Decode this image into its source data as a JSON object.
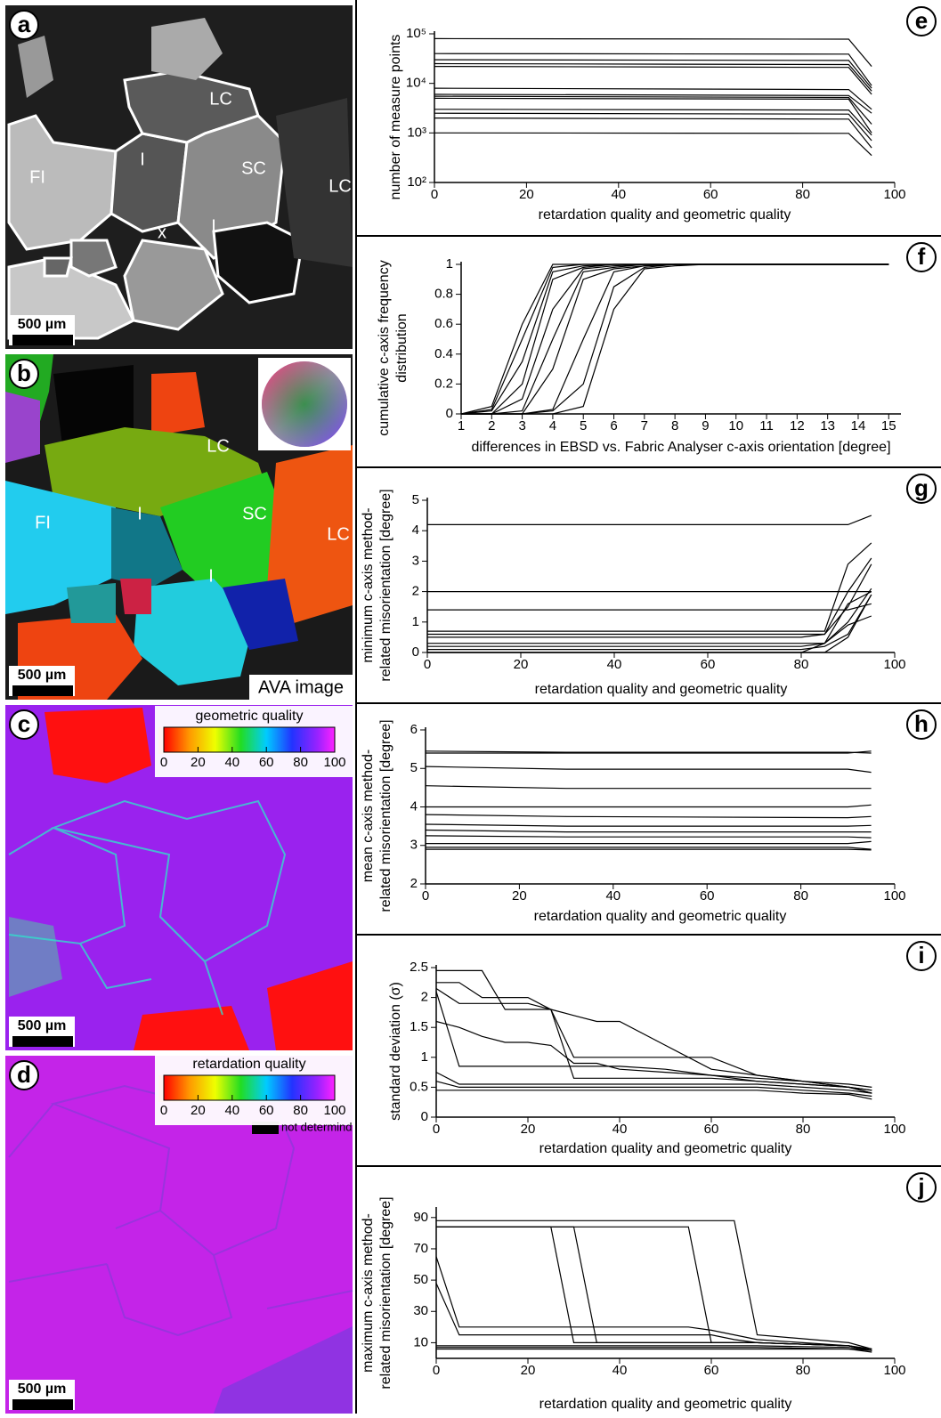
{
  "images": [
    {
      "letter": "a",
      "labels": [
        "LC",
        "SC",
        "LC",
        "FI",
        "I",
        "I",
        "x"
      ],
      "scale_bar": "500 µm"
    },
    {
      "letter": "b",
      "labels": [
        "LC",
        "SC",
        "LC",
        "FI",
        "I",
        "I"
      ],
      "scale_bar": "500 µm",
      "caption": "AVA image"
    },
    {
      "letter": "c",
      "scale_bar": "500 µm",
      "colorbar": {
        "title": "geometric quality",
        "ticks": [
          0,
          20,
          40,
          60,
          80,
          100
        ]
      }
    },
    {
      "letter": "d",
      "scale_bar": "500 µm",
      "colorbar": {
        "title": "retardation quality",
        "ticks": [
          0,
          20,
          40,
          60,
          80,
          100
        ],
        "note": "not determind"
      }
    }
  ],
  "chart_data": [
    {
      "type": "line",
      "letter": "e",
      "log": true,
      "color": "#000000",
      "xlabel": "retardation quality and geometric quality",
      "ylabel": "number of measure points",
      "xlim": [
        0,
        100
      ],
      "xticks": [
        0,
        20,
        40,
        60,
        80,
        100
      ],
      "ylim": [
        100,
        100000
      ],
      "yticks": [
        {
          "value": 100,
          "label": "10²"
        },
        {
          "value": 1000,
          "label": "10³"
        },
        {
          "value": 10000,
          "label": "10⁴"
        },
        {
          "value": 100000,
          "label": "10⁵"
        }
      ],
      "x": [
        0,
        90,
        95
      ],
      "series": [
        {
          "values": [
            80000,
            78000,
            22000
          ]
        },
        {
          "values": [
            40000,
            39000,
            9000
          ]
        },
        {
          "values": [
            30000,
            29000,
            8000
          ]
        },
        {
          "values": [
            25000,
            24000,
            7000
          ]
        },
        {
          "values": [
            22000,
            21000,
            6000
          ]
        },
        {
          "values": [
            8000,
            7500,
            3000
          ]
        },
        {
          "values": [
            6000,
            5700,
            2500
          ]
        },
        {
          "values": [
            5500,
            5200,
            1500
          ]
        },
        {
          "values": [
            5000,
            4800,
            1000
          ]
        },
        {
          "values": [
            3000,
            2900,
            900
          ]
        },
        {
          "values": [
            2500,
            2400,
            700
          ]
        },
        {
          "values": [
            2000,
            1900,
            500
          ]
        },
        {
          "values": [
            1000,
            980,
            350
          ]
        }
      ]
    },
    {
      "type": "line",
      "letter": "f",
      "color": "#000000",
      "xlabel": "differences in EBSD vs. Fabric Analyser c-axis orientation [degree]",
      "ylabel": [
        "cumulative c-axis frequency",
        "distribution"
      ],
      "xlim": [
        1,
        15.4
      ],
      "xticks": [
        1,
        2,
        3,
        4,
        5,
        6,
        7,
        8,
        9,
        10,
        11,
        12,
        13,
        14,
        15
      ],
      "ylim": [
        0,
        1
      ],
      "yticks": [
        0,
        0.2,
        0.4,
        0.6,
        0.8,
        1
      ],
      "x": [
        1,
        2,
        3,
        4,
        5,
        6,
        7,
        8,
        9,
        10,
        11,
        12,
        13,
        14,
        15
      ],
      "series": [
        {
          "values": [
            0,
            0.05,
            0.6,
            1,
            1,
            1,
            1,
            1,
            1,
            1,
            1,
            1,
            1,
            1,
            1
          ]
        },
        {
          "values": [
            0,
            0.03,
            0.5,
            0.98,
            1,
            1,
            1,
            1,
            1,
            1,
            1,
            1,
            1,
            1,
            1
          ]
        },
        {
          "values": [
            0,
            0.02,
            0.35,
            0.95,
            0.99,
            1,
            1,
            1,
            1,
            1,
            1,
            1,
            1,
            1,
            1
          ]
        },
        {
          "values": [
            0,
            0,
            0.2,
            0.9,
            0.98,
            1,
            1,
            1,
            1,
            1,
            1,
            1,
            1,
            1,
            1
          ]
        },
        {
          "values": [
            0,
            0,
            0.1,
            0.7,
            0.97,
            0.99,
            1,
            1,
            1,
            1,
            1,
            1,
            1,
            1,
            1
          ]
        },
        {
          "values": [
            0,
            0,
            0.02,
            0.5,
            0.95,
            0.98,
            1,
            1,
            1,
            1,
            1,
            1,
            1,
            1,
            1
          ]
        },
        {
          "values": [
            0,
            0,
            0,
            0.3,
            0.9,
            0.97,
            0.99,
            1,
            1,
            1,
            1,
            1,
            1,
            1,
            1
          ]
        },
        {
          "values": [
            0,
            0,
            0,
            0.03,
            0.5,
            0.95,
            0.99,
            1,
            1,
            1,
            1,
            1,
            1,
            1,
            1
          ]
        },
        {
          "values": [
            0,
            0,
            0,
            0.02,
            0.2,
            0.85,
            0.98,
            1,
            1,
            1,
            1,
            1,
            1,
            1,
            1
          ]
        },
        {
          "values": [
            0,
            0,
            0,
            0,
            0.05,
            0.7,
            0.97,
            0.99,
            1,
            1,
            1,
            1,
            1,
            1,
            1
          ]
        }
      ]
    },
    {
      "type": "line",
      "letter": "g",
      "color": "#000000",
      "xlabel": "retardation quality and geometric quality",
      "ylabel": [
        "minimum c-axis method-",
        "related misorientation [degree]"
      ],
      "xlim": [
        0,
        100
      ],
      "xticks": [
        0,
        20,
        40,
        60,
        80,
        100
      ],
      "ylim": [
        0,
        5
      ],
      "yticks": [
        0,
        1,
        2,
        3,
        4,
        5
      ],
      "x": [
        0,
        80,
        85,
        90,
        95
      ],
      "series": [
        {
          "values": [
            4.2,
            4.2,
            4.2,
            4.2,
            4.5
          ]
        },
        {
          "values": [
            2,
            2,
            2,
            2,
            2
          ]
        },
        {
          "values": [
            1.4,
            1.4,
            1.4,
            1.4,
            1.6
          ]
        },
        {
          "values": [
            0.7,
            0.7,
            0.7,
            2.9,
            3.6
          ]
        },
        {
          "values": [
            0.6,
            0.6,
            0.6,
            2,
            3.1
          ]
        },
        {
          "values": [
            0.5,
            0.5,
            0.6,
            1.5,
            2.9
          ]
        },
        {
          "values": [
            0.3,
            0.3,
            0.3,
            1,
            2.1
          ]
        },
        {
          "values": [
            0.2,
            0.2,
            0.3,
            1.6,
            2
          ]
        },
        {
          "values": [
            0.1,
            0.1,
            0.2,
            0.6,
            1.9
          ]
        },
        {
          "values": [
            0,
            0,
            0.3,
            0.9,
            1.2
          ]
        },
        {
          "values": [
            0,
            0,
            0,
            0.5,
            1.9
          ]
        }
      ]
    },
    {
      "type": "line",
      "letter": "h",
      "color": "#000000",
      "xlabel": "retardation quality and geometric quality",
      "ylabel": [
        "mean c-axis method-",
        "related misorientation [degree]"
      ],
      "xlim": [
        0,
        100
      ],
      "xticks": [
        0,
        20,
        40,
        60,
        80,
        100
      ],
      "ylim": [
        2,
        6
      ],
      "yticks": [
        2,
        3,
        4,
        5,
        6
      ],
      "x": [
        0,
        30,
        90,
        95
      ],
      "series": [
        {
          "values": [
            5.45,
            5.42,
            5.42,
            5.4
          ]
        },
        {
          "values": [
            5.4,
            5.4,
            5.4,
            5.45
          ]
        },
        {
          "values": [
            5.05,
            4.98,
            4.98,
            4.9
          ]
        },
        {
          "values": [
            4.55,
            4.48,
            4.48,
            4.48
          ]
        },
        {
          "values": [
            4,
            4,
            4,
            4.05
          ]
        },
        {
          "values": [
            3.8,
            3.75,
            3.72,
            3.75
          ]
        },
        {
          "values": [
            3.55,
            3.5,
            3.5,
            3.52
          ]
        },
        {
          "values": [
            3.4,
            3.35,
            3.35,
            3.35
          ]
        },
        {
          "values": [
            3.25,
            3.22,
            3.22,
            3.2
          ]
        },
        {
          "values": [
            3.05,
            3.05,
            3.05,
            3.1
          ]
        },
        {
          "values": [
            2.95,
            2.95,
            2.95,
            2.9
          ]
        },
        {
          "values": [
            2.9,
            2.9,
            2.9,
            2.88
          ]
        }
      ]
    },
    {
      "type": "line",
      "letter": "i",
      "color": "#000000",
      "xlabel": "retardation quality and geometric quality",
      "ylabel": "standard deviation (σ)",
      "xlim": [
        0,
        100
      ],
      "xticks": [
        0,
        20,
        40,
        60,
        80,
        100
      ],
      "ylim": [
        0,
        2.5
      ],
      "yticks": [
        0,
        0.5,
        1,
        1.5,
        2,
        2.5
      ],
      "x": [
        0,
        5,
        10,
        15,
        20,
        25,
        30,
        35,
        40,
        50,
        60,
        70,
        80,
        90,
        95
      ],
      "series": [
        {
          "values": [
            2.45,
            2.45,
            2.45,
            1.8,
            1.8,
            1.8,
            1,
            1,
            1,
            1,
            1,
            0.7,
            0.6,
            0.55,
            0.5
          ]
        },
        {
          "values": [
            2.25,
            2.25,
            2,
            2,
            2,
            1.8,
            1.7,
            1.6,
            1.6,
            1.2,
            0.8,
            0.7,
            0.6,
            0.5,
            0.45
          ]
        },
        {
          "values": [
            2.15,
            1.9,
            1.9,
            1.9,
            1.9,
            1.8,
            0.65,
            0.65,
            0.65,
            0.65,
            0.65,
            0.6,
            0.55,
            0.5,
            0.45
          ]
        },
        {
          "values": [
            1.6,
            1.5,
            1.35,
            1.25,
            1.25,
            1.2,
            0.9,
            0.9,
            0.8,
            0.75,
            0.7,
            0.65,
            0.6,
            0.5,
            0.4
          ]
        },
        {
          "values": [
            2.1,
            0.85,
            0.85,
            0.85,
            0.85,
            0.85,
            0.85,
            0.85,
            0.85,
            0.8,
            0.7,
            0.6,
            0.55,
            0.5,
            0.4
          ]
        },
        {
          "values": [
            0.75,
            0.55,
            0.55,
            0.55,
            0.55,
            0.55,
            0.55,
            0.55,
            0.55,
            0.55,
            0.55,
            0.55,
            0.5,
            0.45,
            0.4
          ]
        },
        {
          "values": [
            0.6,
            0.5,
            0.5,
            0.5,
            0.5,
            0.5,
            0.5,
            0.5,
            0.5,
            0.5,
            0.5,
            0.5,
            0.45,
            0.4,
            0.35
          ]
        },
        {
          "values": [
            0.45,
            0.45,
            0.45,
            0.45,
            0.45,
            0.45,
            0.45,
            0.45,
            0.45,
            0.45,
            0.45,
            0.45,
            0.4,
            0.38,
            0.3
          ]
        }
      ]
    },
    {
      "type": "line",
      "letter": "j",
      "color": "#000000",
      "xlabel": "retardation quality and geometric quality",
      "ylabel": [
        "maximum c-axis method-",
        "related misorientation [degree]"
      ],
      "xlim": [
        0,
        100
      ],
      "xticks": [
        0,
        20,
        40,
        60,
        80,
        100
      ],
      "ylim": [
        0,
        95
      ],
      "yticks": [
        10,
        30,
        50,
        70,
        90
      ],
      "x": [
        0,
        5,
        25,
        30,
        35,
        55,
        60,
        65,
        70,
        90,
        95
      ],
      "series": [
        {
          "values": [
            88,
            88,
            88,
            88,
            88,
            88,
            88,
            88,
            15,
            10,
            6
          ]
        },
        {
          "values": [
            84,
            84,
            84,
            84,
            84,
            84,
            10,
            10,
            10,
            8,
            5
          ]
        },
        {
          "values": [
            84,
            84,
            84,
            10,
            10,
            10,
            10,
            10,
            10,
            8,
            6
          ]
        },
        {
          "values": [
            84,
            84,
            84,
            84,
            10,
            10,
            10,
            10,
            10,
            8,
            5
          ]
        },
        {
          "values": [
            65,
            20,
            20,
            20,
            20,
            20,
            18,
            15,
            12,
            8,
            5
          ]
        },
        {
          "values": [
            48,
            15,
            15,
            15,
            15,
            15,
            15,
            12,
            10,
            8,
            5
          ]
        },
        {
          "values": [
            8,
            8,
            8,
            8,
            8,
            8,
            8,
            8,
            8,
            7,
            5
          ]
        },
        {
          "values": [
            7,
            7,
            7,
            7,
            7,
            7,
            7,
            7,
            7,
            6,
            5
          ]
        },
        {
          "values": [
            6,
            6,
            6,
            6,
            6,
            6,
            6,
            6,
            6,
            6,
            4
          ]
        }
      ]
    }
  ]
}
